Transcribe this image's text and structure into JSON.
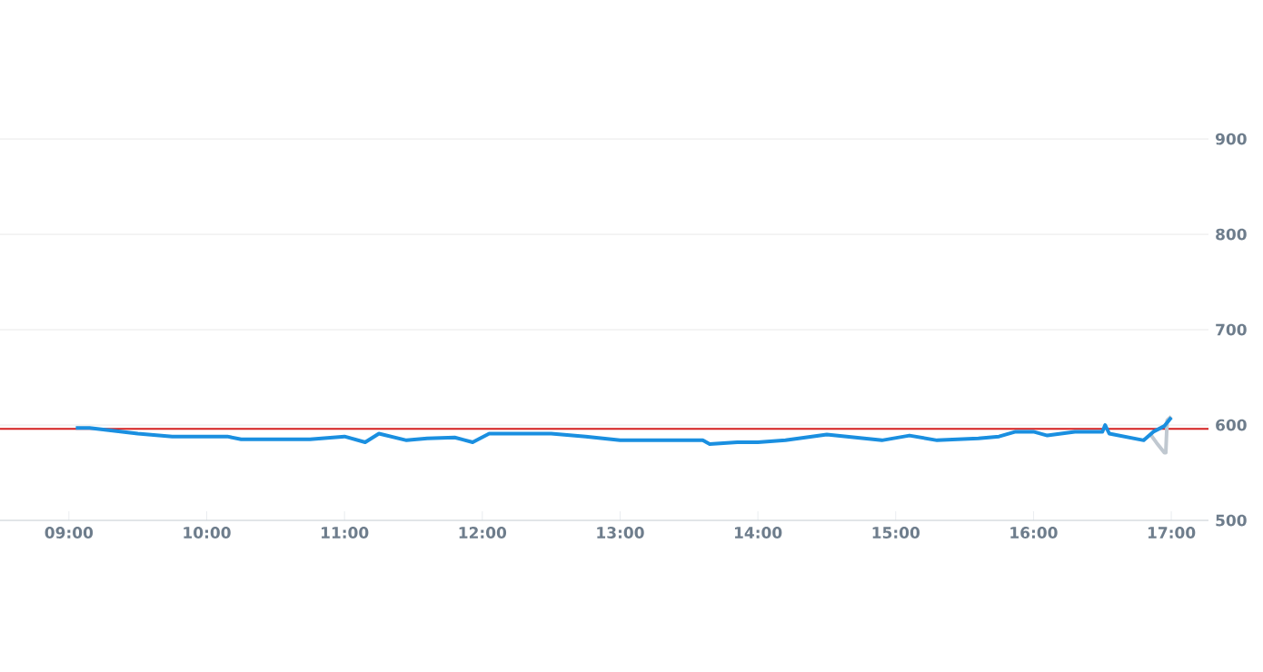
{
  "chart_data": {
    "type": "line",
    "series": [
      {
        "color": "#1a8fe0",
        "x": [
          9.05,
          9.15,
          9.5,
          9.75,
          10.0,
          10.15,
          10.25,
          10.5,
          10.75,
          11.0,
          11.15,
          11.25,
          11.45,
          11.6,
          11.8,
          11.93,
          12.05,
          12.5,
          12.75,
          13.0,
          13.6,
          13.65,
          13.85,
          14.0,
          14.2,
          14.5,
          14.9,
          15.1,
          15.3,
          15.6,
          15.75,
          15.87,
          16.0,
          16.1,
          16.3,
          16.5,
          16.52,
          16.55,
          16.8,
          16.87,
          16.95,
          17.0
        ],
        "values": [
          597,
          597,
          591,
          588,
          588,
          588,
          585,
          585,
          585,
          588,
          582,
          591,
          584,
          586,
          587,
          582,
          591,
          591,
          588,
          584,
          584,
          580,
          582,
          582,
          584,
          590,
          584,
          589,
          584,
          586,
          588,
          593,
          593,
          589,
          593,
          593,
          600,
          591,
          584,
          593,
          599,
          608
        ]
      },
      {
        "color": "#c0c8d0",
        "x": [
          16.85,
          16.9,
          16.95,
          16.96,
          16.97,
          17.0
        ],
        "values": [
          590,
          580,
          571,
          571,
          605,
          609
        ]
      }
    ],
    "xlim": [
      8.5,
      17.27
    ],
    "ylim": [
      500,
      900
    ],
    "xticks": [
      {
        "value": 9,
        "label": "09:00"
      },
      {
        "value": 10,
        "label": "10:00"
      },
      {
        "value": 11,
        "label": "11:00"
      },
      {
        "value": 12,
        "label": "12:00"
      },
      {
        "value": 13,
        "label": "13:00"
      },
      {
        "value": 14,
        "label": "14:00"
      },
      {
        "value": 15,
        "label": "15:00"
      },
      {
        "value": 16,
        "label": "16:00"
      },
      {
        "value": 17,
        "label": "17:00"
      }
    ],
    "yticks": [
      500,
      600,
      700,
      800,
      900
    ],
    "grid": "y",
    "marker": "none",
    "line_style": "solid",
    "ref_lines": [
      {
        "axis": "y",
        "value": 596,
        "color": "#d42020"
      }
    ]
  }
}
